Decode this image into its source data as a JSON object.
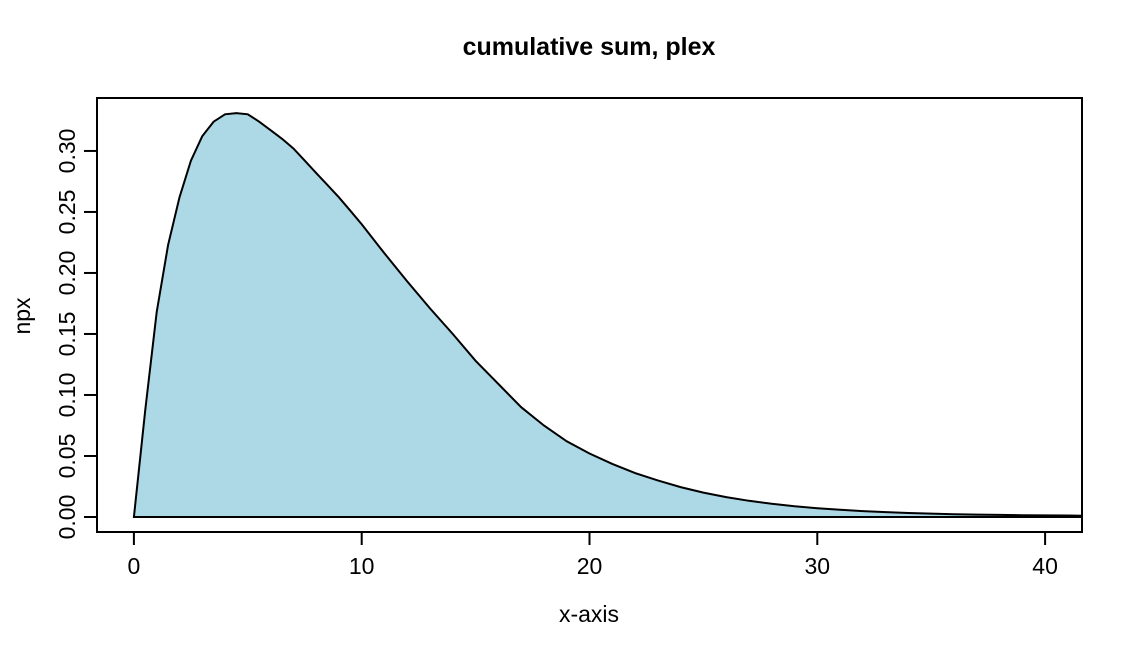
{
  "chart_data": {
    "type": "area",
    "title": "cumulative sum, plex",
    "xlabel": "x-axis",
    "ylabel": "npx",
    "x": [
      0,
      0.5,
      1,
      1.5,
      2,
      2.5,
      3,
      3.5,
      4,
      4.5,
      5,
      5.5,
      6,
      6.5,
      7,
      7.5,
      8,
      8.5,
      9,
      9.5,
      10,
      11,
      12,
      13,
      14,
      15,
      16,
      17,
      18,
      19,
      20,
      21,
      22,
      23,
      24,
      25,
      26,
      27,
      28,
      29,
      30,
      31,
      32,
      33,
      34,
      35,
      36,
      37,
      38,
      39,
      40,
      41,
      41.6
    ],
    "y": [
      0,
      0.088,
      0.168,
      0.223,
      0.262,
      0.292,
      0.312,
      0.324,
      0.33,
      0.331,
      0.33,
      0.324,
      0.317,
      0.31,
      0.302,
      0.292,
      0.282,
      0.272,
      0.262,
      0.251,
      0.24,
      0.216,
      0.193,
      0.171,
      0.15,
      0.128,
      0.109,
      0.09,
      0.075,
      0.062,
      0.052,
      0.0435,
      0.036,
      0.03,
      0.0245,
      0.02,
      0.0163,
      0.0133,
      0.0108,
      0.0088,
      0.0072,
      0.0059,
      0.0048,
      0.004,
      0.0033,
      0.0028,
      0.0023,
      0.002,
      0.0017,
      0.0015,
      0.0013,
      0.0012,
      0.0011
    ],
    "x_ticks": [
      0,
      10,
      20,
      30,
      40
    ],
    "x_tick_labels": [
      "0",
      "10",
      "20",
      "30",
      "40"
    ],
    "y_ticks": [
      0.0,
      0.05,
      0.1,
      0.15,
      0.2,
      0.25,
      0.3
    ],
    "y_tick_labels": [
      "0.00",
      "0.05",
      "0.10",
      "0.15",
      "0.20",
      "0.25",
      "0.30"
    ],
    "xlim": [
      -1.62,
      41.62
    ],
    "ylim": [
      -0.0123,
      0.3434
    ],
    "grid": false,
    "legend_position": "none",
    "colors": {
      "fill": "#ADD8E6",
      "line": "#000000",
      "axis": "#000000",
      "text": "#000000",
      "background": "#FFFFFF"
    }
  }
}
